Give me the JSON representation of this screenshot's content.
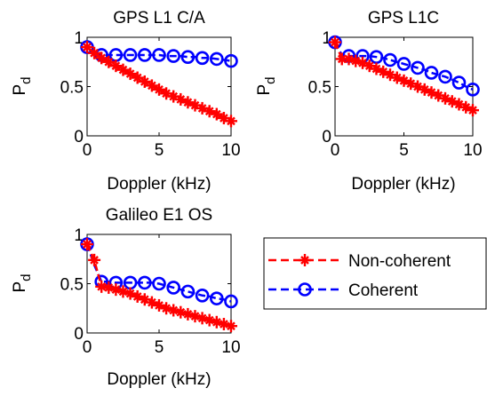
{
  "legend": {
    "entries": [
      {
        "label": "Non-coherent",
        "color": "#ff0000",
        "marker": "star-plus",
        "line": "dashed"
      },
      {
        "label": "Coherent",
        "color": "#0000ff",
        "marker": "circle",
        "line": "dashed"
      }
    ]
  },
  "chart_data": [
    {
      "type": "line",
      "title": "GPS L1 C/A",
      "xlabel": "Doppler (kHz)",
      "ylabel": "P",
      "ylabel_subscript": "d",
      "xlim": [
        0,
        10
      ],
      "ylim": [
        0,
        1
      ],
      "xticks": [
        0,
        5,
        10
      ],
      "yticks": [
        0,
        0.5,
        1
      ],
      "xtick_labels": [
        "0",
        "5",
        "10"
      ],
      "ytick_labels": [
        "0",
        "0.5",
        "1"
      ],
      "grid": false,
      "x": [
        0,
        0.5,
        1,
        1.5,
        2,
        2.5,
        3,
        3.5,
        4,
        4.5,
        5,
        5.5,
        6,
        6.5,
        7,
        7.5,
        8,
        8.5,
        9,
        9.5,
        10
      ],
      "series": [
        {
          "name": "Non-coherent",
          "values": [
            0.9,
            0.84,
            0.79,
            0.75,
            0.71,
            0.67,
            0.63,
            0.59,
            0.55,
            0.51,
            0.47,
            0.43,
            0.4,
            0.37,
            0.34,
            0.31,
            0.28,
            0.25,
            0.22,
            0.18,
            0.15
          ]
        },
        {
          "name": "Coherent",
          "values": [
            0.9,
            0.83,
            0.82,
            0.82,
            0.82,
            0.82,
            0.82,
            0.82,
            0.82,
            0.82,
            0.82,
            0.81,
            0.81,
            0.81,
            0.8,
            0.8,
            0.79,
            0.79,
            0.78,
            0.77,
            0.76
          ]
        }
      ]
    },
    {
      "type": "line",
      "title": "GPS L1C",
      "xlabel": "Doppler (kHz)",
      "ylabel": "P",
      "ylabel_subscript": "d",
      "xlim": [
        0,
        10
      ],
      "ylim": [
        0,
        1
      ],
      "xticks": [
        0,
        5,
        10
      ],
      "yticks": [
        0,
        0.5,
        1
      ],
      "xtick_labels": [
        "0",
        "5",
        "10"
      ],
      "ytick_labels": [
        "0",
        "0.5",
        "1"
      ],
      "grid": false,
      "x": [
        0,
        0.5,
        1,
        1.5,
        2,
        2.5,
        3,
        3.5,
        4,
        4.5,
        5,
        5.5,
        6,
        6.5,
        7,
        7.5,
        8,
        8.5,
        9,
        9.5,
        10
      ],
      "series": [
        {
          "name": "Non-coherent",
          "values": [
            0.95,
            0.78,
            0.78,
            0.76,
            0.74,
            0.71,
            0.68,
            0.65,
            0.62,
            0.59,
            0.56,
            0.53,
            0.5,
            0.47,
            0.44,
            0.41,
            0.38,
            0.35,
            0.32,
            0.29,
            0.26
          ]
        },
        {
          "name": "Coherent",
          "values": [
            0.95,
            0.82,
            0.81,
            0.81,
            0.81,
            0.81,
            0.8,
            0.79,
            0.77,
            0.75,
            0.73,
            0.71,
            0.69,
            0.67,
            0.64,
            0.62,
            0.6,
            0.57,
            0.54,
            0.5,
            0.47
          ]
        }
      ]
    },
    {
      "type": "line",
      "title": "Galileo E1 OS",
      "xlabel": "Doppler (kHz)",
      "ylabel": "P",
      "ylabel_subscript": "d",
      "xlim": [
        0,
        10
      ],
      "ylim": [
        0,
        1
      ],
      "xticks": [
        0,
        5,
        10
      ],
      "yticks": [
        0,
        0.5,
        1
      ],
      "xtick_labels": [
        "0",
        "5",
        "10"
      ],
      "ytick_labels": [
        "0",
        "0.5",
        "1"
      ],
      "grid": false,
      "x": [
        0,
        0.5,
        1,
        1.5,
        2,
        2.5,
        3,
        3.5,
        4,
        4.5,
        5,
        5.5,
        6,
        6.5,
        7,
        7.5,
        8,
        8.5,
        9,
        9.5,
        10
      ],
      "series": [
        {
          "name": "Non-coherent",
          "values": [
            0.9,
            0.74,
            0.47,
            0.46,
            0.44,
            0.42,
            0.4,
            0.37,
            0.34,
            0.31,
            0.28,
            0.25,
            0.23,
            0.21,
            0.19,
            0.17,
            0.15,
            0.13,
            0.11,
            0.09,
            0.07
          ]
        },
        {
          "name": "Coherent",
          "values": [
            0.9,
            0.69,
            0.52,
            0.52,
            0.51,
            0.51,
            0.51,
            0.51,
            0.51,
            0.51,
            0.5,
            0.48,
            0.46,
            0.44,
            0.42,
            0.4,
            0.38,
            0.37,
            0.35,
            0.34,
            0.32
          ]
        }
      ]
    }
  ]
}
